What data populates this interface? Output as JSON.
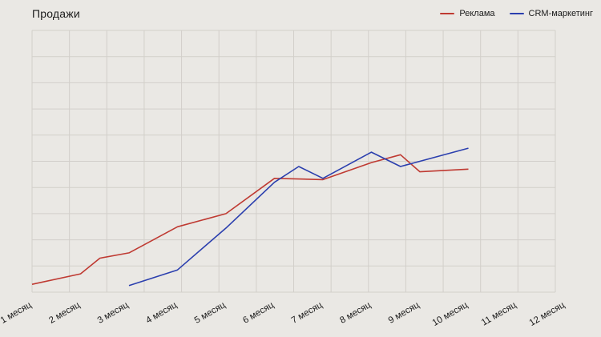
{
  "chart_data": {
    "type": "line",
    "title": "Продажи",
    "categories": [
      "1 месяц",
      "2 месяц",
      "3 месяц",
      "4 месяц",
      "5 месяц",
      "6 месяц",
      "7 месяц",
      "8 месяц",
      "9 месяц",
      "10 месяц",
      "11 месяц",
      "12 месяц"
    ],
    "xlabel": "",
    "ylabel": "",
    "ylim": [
      0,
      100
    ],
    "grid": true,
    "grid_rows": 10,
    "grid_cols": 14,
    "legend_position": "top-right",
    "series": [
      {
        "name": "Реклама",
        "color": "#bf3a32",
        "x": [
          1,
          2,
          2.4,
          3,
          4,
          5,
          6,
          7,
          8,
          8.6,
          9,
          10
        ],
        "values": [
          3,
          7,
          13,
          15,
          25,
          30,
          43.5,
          43,
          49.5,
          52.5,
          46,
          47
        ]
      },
      {
        "name": "CRM-маркетинг",
        "color": "#2b3fae",
        "x": [
          3,
          4,
          5,
          6,
          6.5,
          7,
          8,
          8.6,
          10
        ],
        "values": [
          2.5,
          8.5,
          24.5,
          42,
          48,
          43.5,
          53.5,
          48,
          55
        ]
      }
    ]
  },
  "colors": {
    "background": "#eae8e4",
    "grid": "#d2cfca",
    "text": "#1b1b1b"
  }
}
